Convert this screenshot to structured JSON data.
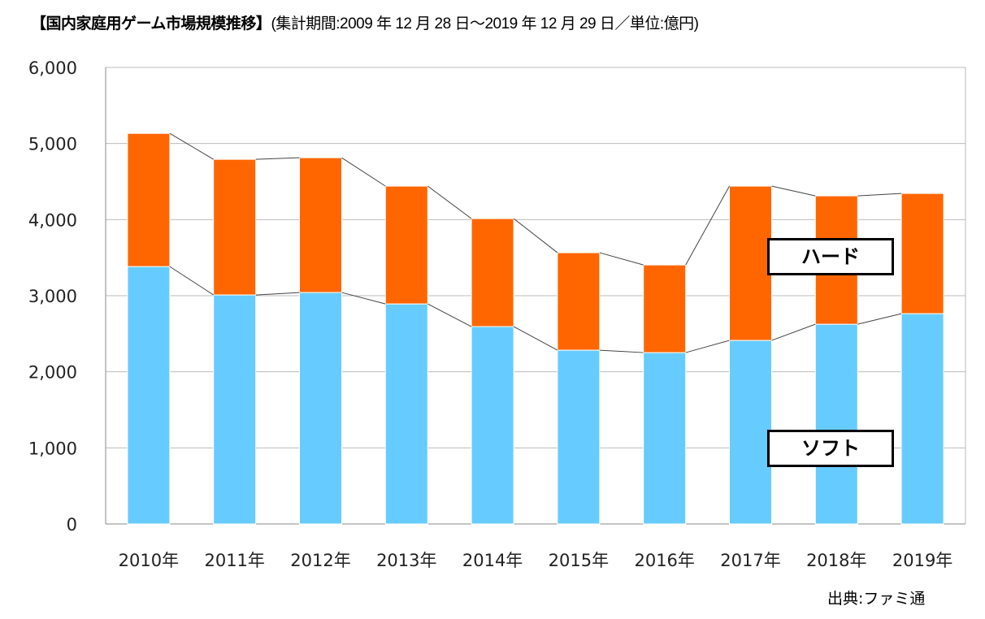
{
  "title": "【国内家庭用ゲーム市場規模推移】",
  "subtitle": "(集計期間:2009 年 12 月 28 日～2019 年 12 月 29 日／単位:億円)",
  "source": "出典:ファミ通",
  "chart_data": {
    "type": "bar",
    "stacked": true,
    "categories": [
      "2010年",
      "2011年",
      "2012年",
      "2013年",
      "2014年",
      "2015年",
      "2016年",
      "2017年",
      "2018年",
      "2019年"
    ],
    "series": [
      {
        "name": "ソフト",
        "color": "#66CCFF",
        "values": [
          3383,
          3010,
          3042,
          2892,
          2594,
          2284,
          2252,
          2412,
          2625,
          2764
        ]
      },
      {
        "name": "ハード",
        "color": "#FF6600",
        "values": [
          1750,
          1782,
          1771,
          1548,
          1419,
          1281,
          1152,
          2028,
          1687,
          1580
        ]
      }
    ],
    "ylim": [
      0,
      6000
    ],
    "yticks": [
      "0",
      "1,000",
      "2,000",
      "3,000",
      "4,000",
      "5,000",
      "6,000"
    ],
    "grid": true,
    "series_lines": true,
    "legend": "labels inside plot, right side"
  }
}
